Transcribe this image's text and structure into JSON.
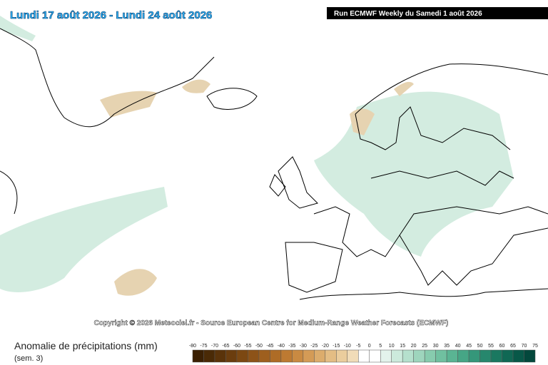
{
  "header": {
    "period": "Lundi 17 août 2026 - Lundi 24 août 2026",
    "run": "Run ECMWF Weekly du Samedi 1 août 2026"
  },
  "copyright": "Copyright © 2026 Meteociel.fr - Source European Centre for Medium-Range Weather Forecasts (ECMWF)",
  "legend": {
    "title": "Anomalie de précipitations (mm)",
    "subtitle": "(sem. 3)",
    "ticks": [
      -80,
      -75,
      -70,
      -65,
      -60,
      -55,
      -50,
      -45,
      -40,
      -35,
      -30,
      -25,
      -20,
      -15,
      -10,
      -5,
      0,
      5,
      10,
      15,
      20,
      25,
      30,
      35,
      40,
      45,
      50,
      55,
      60,
      65,
      70,
      75
    ],
    "colors": [
      "#3b2003",
      "#4a2a06",
      "#5a330a",
      "#6b3d0e",
      "#7c4812",
      "#8d5318",
      "#9e5f1e",
      "#ae6c26",
      "#bd7a32",
      "#c98a42",
      "#d49b56",
      "#dcac6c",
      "#e4bd84",
      "#ebcd9d",
      "#f1dcb8",
      "#ffffff",
      "#ffffff",
      "#e3f3ec",
      "#cceadc",
      "#b5e0cd",
      "#9ed5bd",
      "#87cbae",
      "#70c0a0",
      "#5ab493",
      "#46a686",
      "#35977a",
      "#27876d",
      "#1a7860",
      "#106854",
      "#085848",
      "#03483c"
    ]
  }
}
